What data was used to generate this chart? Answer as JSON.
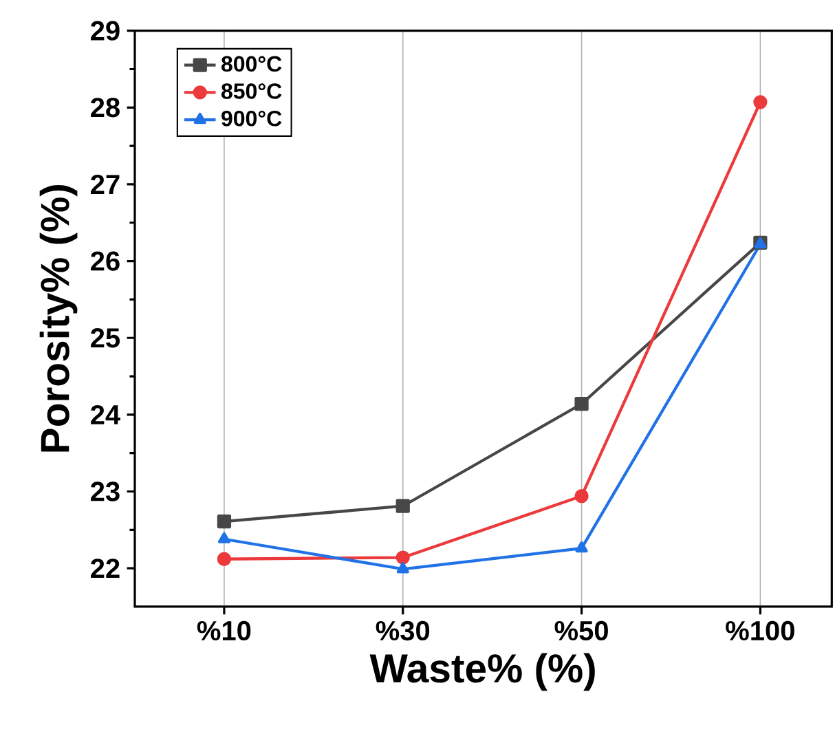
{
  "chart_data": {
    "type": "line",
    "xlabel": "Waste% (%)",
    "ylabel": "Porosity% (%)",
    "categories": [
      "%10",
      "%30",
      "%50",
      "%100"
    ],
    "series": [
      {
        "name": "800°C",
        "color": "#474747",
        "marker": "square",
        "values": [
          22.61,
          22.81,
          24.14,
          26.24
        ]
      },
      {
        "name": "850°C",
        "color": "#ec3a3c",
        "marker": "circle",
        "values": [
          22.12,
          22.14,
          22.94,
          28.07
        ]
      },
      {
        "name": "900°C",
        "color": "#2072e6",
        "marker": "triangle",
        "values": [
          22.38,
          21.99,
          22.26,
          26.22
        ]
      }
    ],
    "ylim": [
      21.5,
      29
    ],
    "yticks": [
      22,
      23,
      24,
      25,
      26,
      27,
      28,
      29
    ],
    "grid": "x",
    "legend": "top left",
    "line_style": "solid"
  }
}
